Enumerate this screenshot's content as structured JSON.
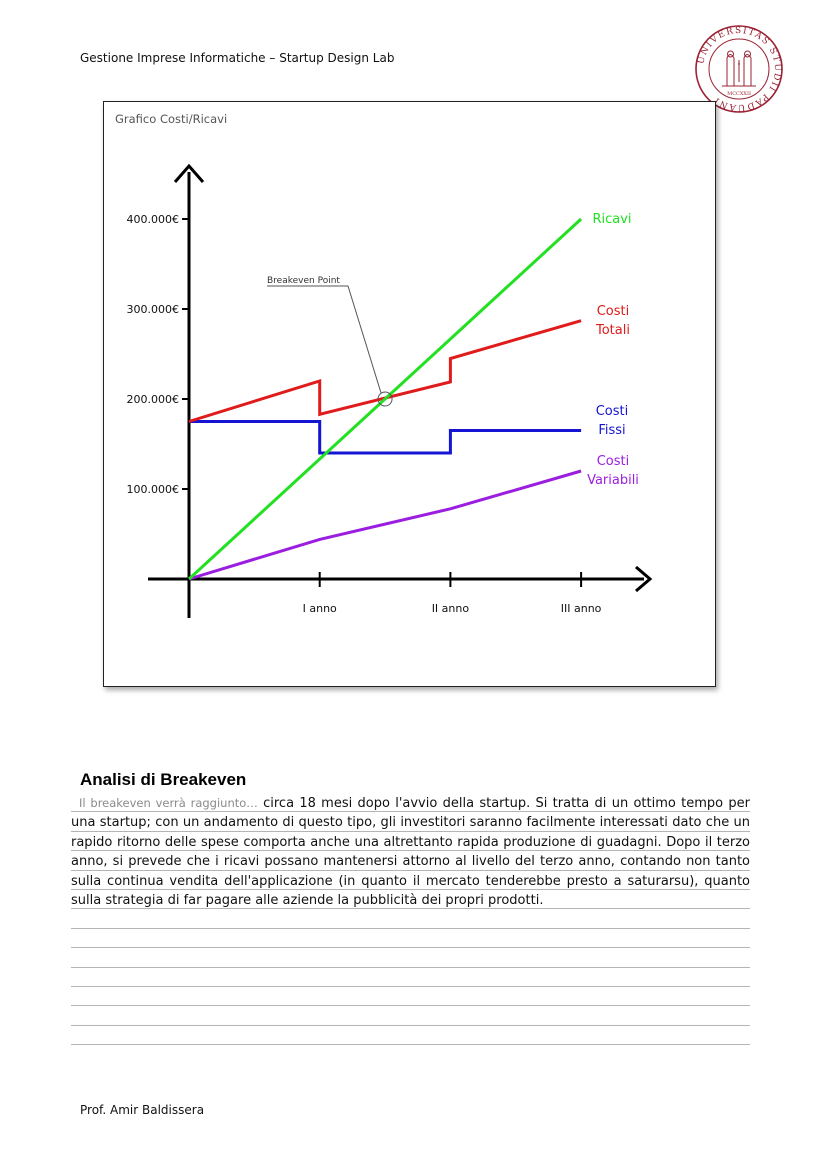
{
  "header": {
    "course": "Gestione Imprese Informatiche – Startup Design Lab"
  },
  "seal": {
    "motto": "UNIVERSITAS STUDII PADUANI",
    "year": "MCCXXII",
    "color": "#9b2335"
  },
  "chart_data": {
    "type": "line",
    "title": "Grafico Costi/Ricavi",
    "categories": [
      "",
      "I anno",
      "II anno",
      "III anno"
    ],
    "y_ticks": [
      "100.000€",
      "200.000€",
      "300.000€",
      "400.000€"
    ],
    "xlabel": "",
    "ylabel": "",
    "ylim": [
      0,
      400000
    ],
    "annotation": "Breakeven Point",
    "breakeven": {
      "x": 1.5,
      "y": 200000
    },
    "series": [
      {
        "name": "Ricavi",
        "color": "#22e022",
        "points": [
          [
            0,
            0
          ],
          [
            3,
            400000
          ]
        ]
      },
      {
        "name": "Costi Totali",
        "color": "#e01b1b",
        "points": [
          [
            0,
            175000
          ],
          [
            1,
            220000
          ],
          [
            1,
            183000
          ],
          [
            2,
            219000
          ],
          [
            2,
            245000
          ],
          [
            3,
            287000
          ]
        ]
      },
      {
        "name": "Costi Fissi",
        "color": "#1414d2",
        "points": [
          [
            0,
            175000
          ],
          [
            1,
            175000
          ],
          [
            1,
            140000
          ],
          [
            2,
            140000
          ],
          [
            2,
            165000
          ],
          [
            3,
            165000
          ]
        ]
      },
      {
        "name": "Costi Variabili",
        "color": "#9b1ee0",
        "points": [
          [
            0,
            0
          ],
          [
            1,
            44000
          ],
          [
            2,
            78000
          ],
          [
            3,
            120000
          ]
        ]
      }
    ],
    "labels": {
      "ricavi": "Ricavi",
      "totali1": "Costi",
      "totali2": "Totali",
      "fissi1": "Costi",
      "fissi2": "Fissi",
      "variabili1": "Costi",
      "variabili2": "Variabili"
    }
  },
  "analysis": {
    "title": "Analisi di Breakeven",
    "lead": "Il breakeven verrà raggiunto…",
    "text": " circa 18 mesi dopo l'avvio della startup. Si tratta di un ottimo tempo per una startup; con un andamento di questo tipo, gli investitori saranno facilmente interessati dato che un rapido ritorno delle spese comporta anche una altrettanto rapida produzione di guadagni. Dopo il terzo anno, si prevede che i ricavi possano mantenersi attorno al livello del terzo anno, contando non tanto sulla continua vendita dell'applicazione (in quanto il mercato tenderebbe presto a saturarsu), quanto sulla strategia di far pagare alle aziende la pubblicità dei propri prodotti."
  },
  "footer": {
    "author": "Prof. Amir Baldissera"
  }
}
